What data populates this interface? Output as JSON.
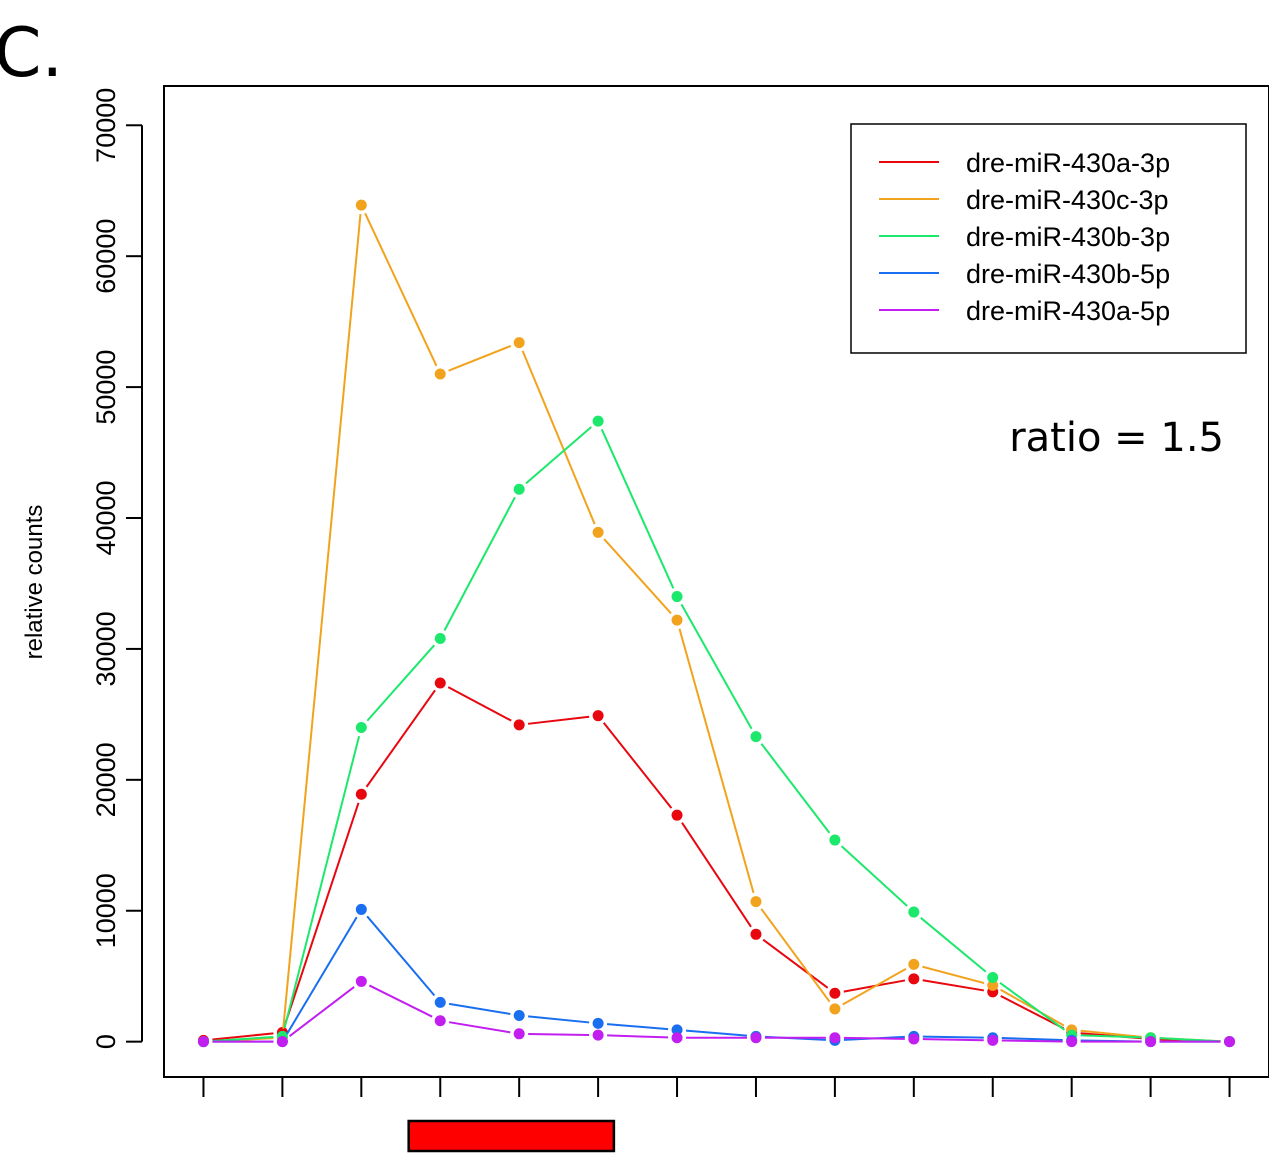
{
  "panel_label": "C.",
  "annotation": "ratio = 1.5",
  "colors": {
    "dre-miR-430a-3p": "#e8070e",
    "dre-miR-430c-3p": "#f2a31d",
    "dre-miR-430b-3p": "#1ce86b",
    "dre-miR-430b-5p": "#1a6ef0",
    "dre-miR-430a-5p": "#c21ef0",
    "highlight_bar": "#ff0000"
  },
  "chart_data": {
    "type": "line",
    "title": "",
    "xlabel": "",
    "ylabel": "relative counts",
    "x": [
      1,
      2,
      3,
      4,
      5,
      6,
      7,
      8,
      9,
      10,
      11,
      12,
      13,
      14
    ],
    "xlim": [
      0.5,
      14.5
    ],
    "ylim": [
      -2700,
      73000
    ],
    "y_ticks": [
      0,
      10000,
      20000,
      30000,
      40000,
      50000,
      60000,
      70000
    ],
    "grid": false,
    "legend_position": "top-right",
    "highlight_bar_x_range": [
      3.6,
      6.2
    ],
    "series": [
      {
        "name": "dre-miR-430a-3p",
        "values": [
          100,
          700,
          18900,
          27400,
          24200,
          24900,
          17300,
          8200,
          3700,
          4800,
          3800,
          700,
          200,
          0
        ]
      },
      {
        "name": "dre-miR-430c-3p",
        "values": [
          0,
          300,
          63900,
          51000,
          53400,
          38900,
          32200,
          10700,
          2500,
          5900,
          4300,
          900,
          300,
          0
        ]
      },
      {
        "name": "dre-miR-430b-3p",
        "values": [
          0,
          400,
          24000,
          30800,
          42200,
          47400,
          34000,
          23300,
          15400,
          9900,
          4900,
          500,
          300,
          0
        ]
      },
      {
        "name": "dre-miR-430b-5p",
        "values": [
          0,
          0,
          10100,
          3000,
          2000,
          1400,
          900,
          400,
          100,
          400,
          300,
          100,
          0,
          0
        ]
      },
      {
        "name": "dre-miR-430a-5p",
        "values": [
          0,
          0,
          4600,
          1600,
          600,
          500,
          300,
          300,
          300,
          200,
          100,
          0,
          0,
          0
        ]
      }
    ]
  }
}
